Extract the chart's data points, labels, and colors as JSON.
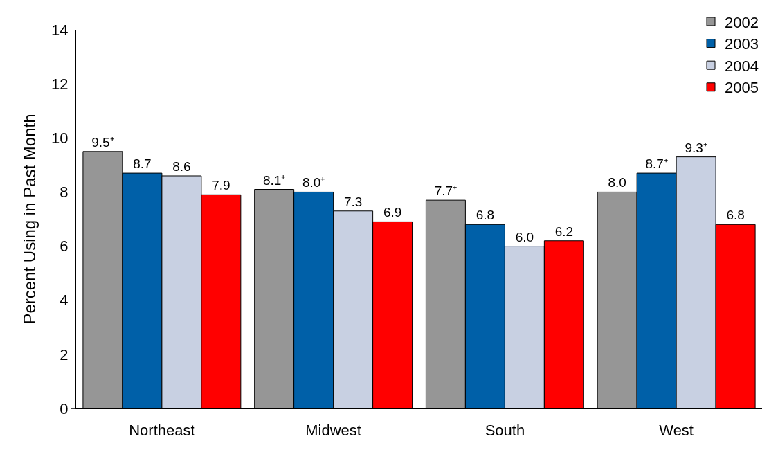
{
  "chart_data": {
    "type": "bar",
    "ylabel": "Percent Using in Past Month",
    "categories": [
      "Northeast",
      "Midwest",
      "South",
      "West"
    ],
    "series": [
      {
        "name": "2002",
        "color": "#969696",
        "values": [
          9.5,
          8.1,
          7.7,
          8.0
        ],
        "value_labels": [
          "9.5⁺",
          "8.1⁺",
          "7.7⁺",
          "8.0"
        ]
      },
      {
        "name": "2003",
        "color": "#0060a8",
        "values": [
          8.7,
          8.0,
          6.8,
          8.7
        ],
        "value_labels": [
          "8.7",
          "8.0⁺",
          "6.8",
          "8.7⁺"
        ]
      },
      {
        "name": "2004",
        "color": "#c8d0e2",
        "values": [
          8.6,
          7.3,
          6.0,
          9.3
        ],
        "value_labels": [
          "8.6",
          "7.3",
          "6.0",
          "9.3⁺"
        ]
      },
      {
        "name": "2005",
        "color": "#ff0000",
        "values": [
          7.9,
          6.9,
          6.2,
          6.8
        ],
        "value_labels": [
          "7.9",
          "6.9",
          "6.2",
          "6.8"
        ]
      }
    ],
    "ylim": [
      0,
      14
    ],
    "yticks": [
      0,
      2,
      4,
      6,
      8,
      10,
      12,
      14
    ],
    "legend": "top right"
  }
}
